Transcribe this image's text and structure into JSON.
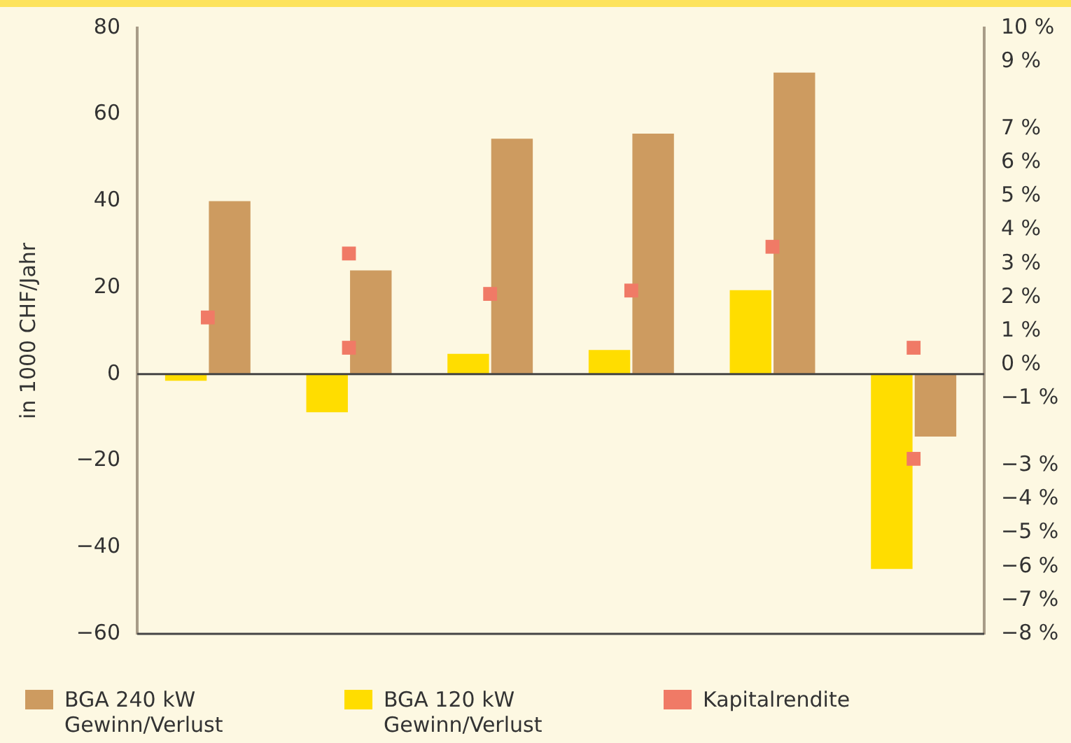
{
  "chart_data": {
    "type": "bar",
    "ylabel": "in 1000 CHF/Jahr",
    "categories": [
      null,
      null,
      null,
      null,
      null,
      null
    ],
    "series": [
      {
        "name": "BGA 120 kW Gewinn/Verlust",
        "color": "#ffdd00",
        "values": [
          -1.5,
          -8.8,
          4.7,
          5.6,
          19.4,
          -45
        ]
      },
      {
        "name": "BGA 240 kW Gewinn/Verlust",
        "color": "#cd9b60",
        "values": [
          40,
          24,
          54.4,
          55.6,
          69.7,
          -14.4
        ]
      },
      {
        "name": "Kapitalrendite",
        "type": "scatter",
        "axis": "y2",
        "marker": "square",
        "color": "#f07a66",
        "values": [
          1.4,
          0.5,
          2.1,
          2.2,
          3.5,
          -2.8
        ]
      },
      {
        "type": "scatter",
        "axis": "y2",
        "marker": "square",
        "color": "#f07a66",
        "values": [
          null,
          3.3,
          null,
          null,
          null,
          0.5
        ]
      }
    ],
    "ylim": [
      -60,
      80
    ],
    "yticks": [
      {
        "value": -60,
        "label": "−60"
      },
      {
        "value": -40,
        "label": "−40"
      },
      {
        "value": -20,
        "label": "−20"
      },
      0,
      20,
      40,
      60,
      80
    ],
    "y2lim": [
      -8,
      10
    ],
    "y2ticks": [
      {
        "value": 10,
        "label": "10 %"
      },
      {
        "value": 9,
        "label": "9 %"
      },
      {
        "value": 7,
        "label": "7 %"
      },
      {
        "value": 6,
        "label": "6 %"
      },
      {
        "value": 5,
        "label": "5 %"
      },
      {
        "value": 4,
        "label": "4 %"
      },
      {
        "value": 3,
        "label": "3 %"
      },
      {
        "value": 2,
        "label": "2 %"
      },
      {
        "value": 1,
        "label": "1 %"
      },
      {
        "value": 0,
        "label": "0 %"
      },
      {
        "value": -1,
        "label": "−1 %"
      },
      {
        "value": -3,
        "label": "−3 %"
      },
      {
        "value": -4,
        "label": "−4 %"
      },
      {
        "value": -5,
        "label": "−5 %"
      },
      {
        "value": -6,
        "label": "−6 %"
      },
      {
        "value": -7,
        "label": "−7 %"
      },
      {
        "value": -8,
        "label": "−8 %"
      }
    ],
    "ref_lines": [
      {
        "axis": "y",
        "value": 0,
        "color": "#444444"
      }
    ],
    "grid": false,
    "legend": "bottom"
  }
}
